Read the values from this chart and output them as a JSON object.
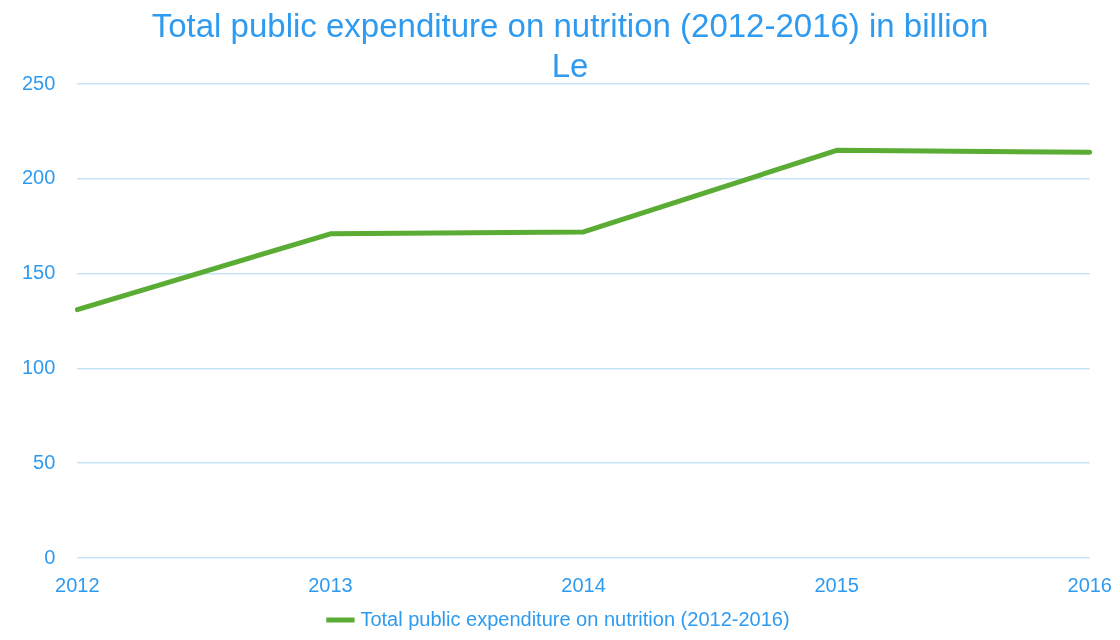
{
  "chart_data": {
    "type": "line",
    "title": "Total public expenditure on nutrition (2012-2016) in billion Le",
    "categories": [
      "2012",
      "2013",
      "2014",
      "2015",
      "2016"
    ],
    "series": [
      {
        "name": "Total public expenditure on nutrition (2012-2016)",
        "color": "#5aac34",
        "values": [
          131,
          171,
          172,
          215,
          214
        ]
      }
    ],
    "ylim": [
      0,
      250
    ],
    "yticks": [
      0,
      50,
      100,
      150,
      200,
      250
    ],
    "grid": "y",
    "legend": "bottom",
    "marker": "none",
    "line_style": "solid"
  }
}
